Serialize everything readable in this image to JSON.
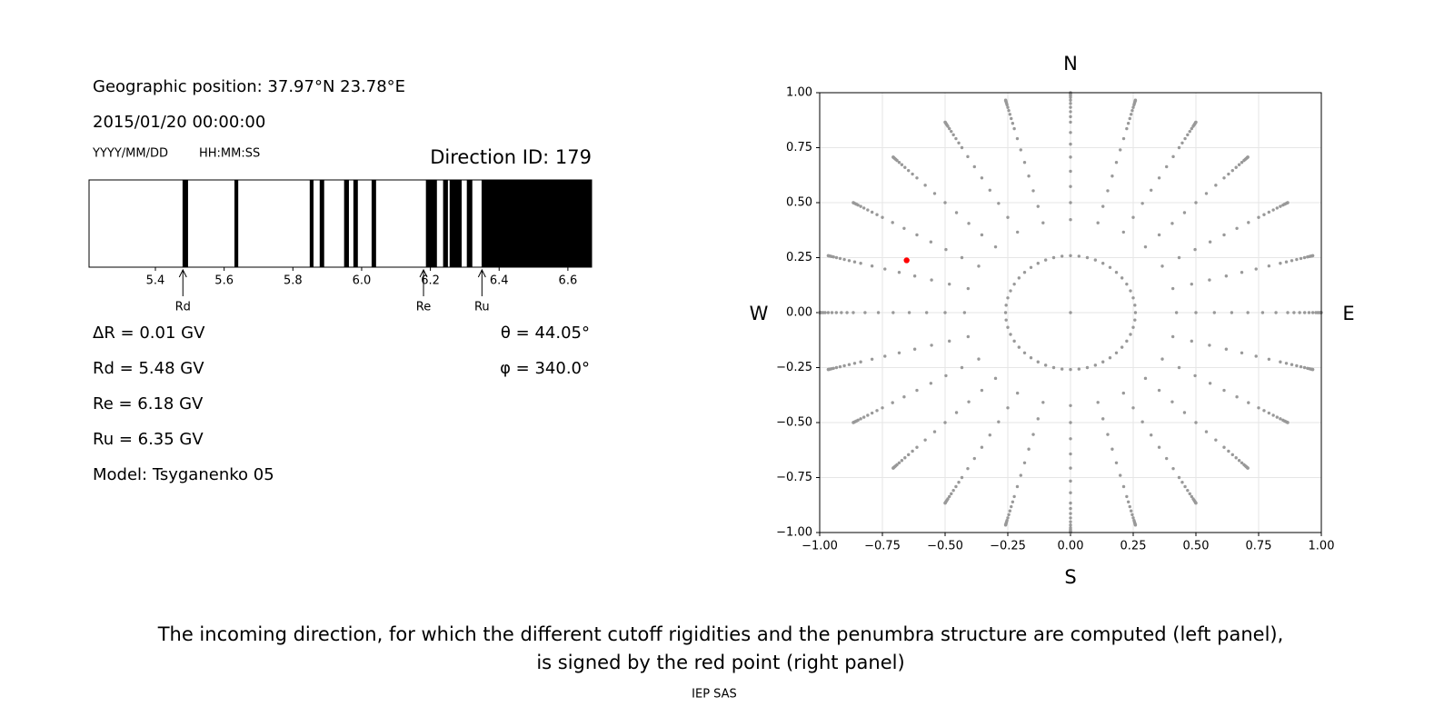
{
  "info": {
    "position": "Geographic position: 37.97°N 23.78°E",
    "datetime": "2015/01/20 00:00:00",
    "date_format": "YYYY/MM/DD",
    "time_format": "HH:MM:SS",
    "direction_id": "Direction ID: 179"
  },
  "parameters": {
    "delta_r": "ΔR = 0.01 GV",
    "rd": "Rd = 5.48 GV",
    "re": "Re = 6.18 GV",
    "ru": "Ru = 6.35 GV",
    "model": "Model: Tsyganenko 05",
    "theta": "θ = 44.05°",
    "phi": "φ = 340.0°"
  },
  "chart_data": [
    {
      "type": "penumbra",
      "color": "#000000",
      "xlim": [
        5.207,
        6.669
      ],
      "xticks": [
        5.4,
        5.6,
        5.8,
        {
          "value": 6,
          "label": "6.0"
        },
        6.2,
        6.4,
        6.6
      ],
      "bands": [
        [
          5.479,
          5.495
        ],
        [
          5.63,
          5.641
        ],
        [
          5.849,
          5.86
        ],
        [
          5.878,
          5.891
        ],
        [
          5.949,
          5.963
        ],
        [
          5.976,
          5.989
        ],
        [
          6.029,
          6.042
        ],
        [
          6.187,
          6.219
        ],
        [
          6.237,
          6.251
        ],
        [
          6.256,
          6.291
        ],
        [
          6.306,
          6.322
        ],
        [
          6.349,
          6.669
        ]
      ],
      "markers": [
        {
          "label": "Rd",
          "value": 5.48
        },
        {
          "label": "Re",
          "value": 6.18
        },
        {
          "label": "Ru",
          "value": 6.35
        }
      ]
    },
    {
      "type": "scatter",
      "color": "#999999",
      "grid": true,
      "xlim": [
        -1,
        1
      ],
      "ylim": [
        -1,
        1
      ],
      "xticks": [
        {
          "value": -1,
          "label": "−1.00"
        },
        {
          "value": -0.75,
          "label": "−0.75"
        },
        {
          "value": -0.5,
          "label": "−0.50"
        },
        {
          "value": -0.25,
          "label": "−0.25"
        },
        {
          "value": 0,
          "label": "0.00"
        },
        {
          "value": 0.25,
          "label": "0.25"
        },
        {
          "value": 0.5,
          "label": "0.50"
        },
        {
          "value": 0.75,
          "label": "0.75"
        },
        {
          "value": 1,
          "label": "1.00"
        }
      ],
      "yticks": [
        {
          "value": -1,
          "label": "−1.00"
        },
        {
          "value": -0.75,
          "label": "−0.75"
        },
        {
          "value": -0.5,
          "label": "−0.50"
        },
        {
          "value": -0.25,
          "label": "−0.25"
        },
        {
          "value": 0,
          "label": "0.00"
        },
        {
          "value": 0.25,
          "label": "0.25"
        },
        {
          "value": 0.5,
          "label": "0.50"
        },
        {
          "value": 0.75,
          "label": "0.75"
        },
        {
          "value": 1,
          "label": "1.00"
        }
      ],
      "rings": [
        {
          "zenith": 0,
          "count": 1
        },
        {
          "zenith": 15,
          "count": 48
        },
        {
          "zenith": 25,
          "count": 24
        },
        {
          "zenith": 30,
          "count": 24
        },
        {
          "zenith": 35,
          "count": 24
        },
        {
          "zenith": 40,
          "count": 24
        },
        {
          "zenith": 45,
          "count": 24
        },
        {
          "zenith": 50,
          "count": 24
        },
        {
          "zenith": 55,
          "count": 24
        },
        {
          "zenith": 60,
          "count": 24
        },
        {
          "zenith": 63,
          "count": 24
        },
        {
          "zenith": 66,
          "count": 24
        },
        {
          "zenith": 69,
          "count": 24
        },
        {
          "zenith": 72,
          "count": 24
        },
        {
          "zenith": 75,
          "count": 24
        },
        {
          "zenith": 78,
          "count": 24
        },
        {
          "zenith": 80,
          "count": 24
        },
        {
          "zenith": 82,
          "count": 24
        },
        {
          "zenith": 84,
          "count": 24
        },
        {
          "zenith": 86,
          "count": 24
        },
        {
          "zenith": 88,
          "count": 24
        },
        {
          "zenith": 90,
          "count": 24
        }
      ],
      "highlight": {
        "theta": 44.05,
        "phi": 340,
        "color": "#ff0000"
      },
      "directions": {
        "north": "N",
        "south": "S",
        "east": "E",
        "west": "W"
      }
    }
  ],
  "caption": [
    "The incoming direction, for which the different cutoff rigidities and the penumbra structure are computed (left panel),",
    "is signed by the red point (right panel)"
  ],
  "footer": "IEP SAS"
}
